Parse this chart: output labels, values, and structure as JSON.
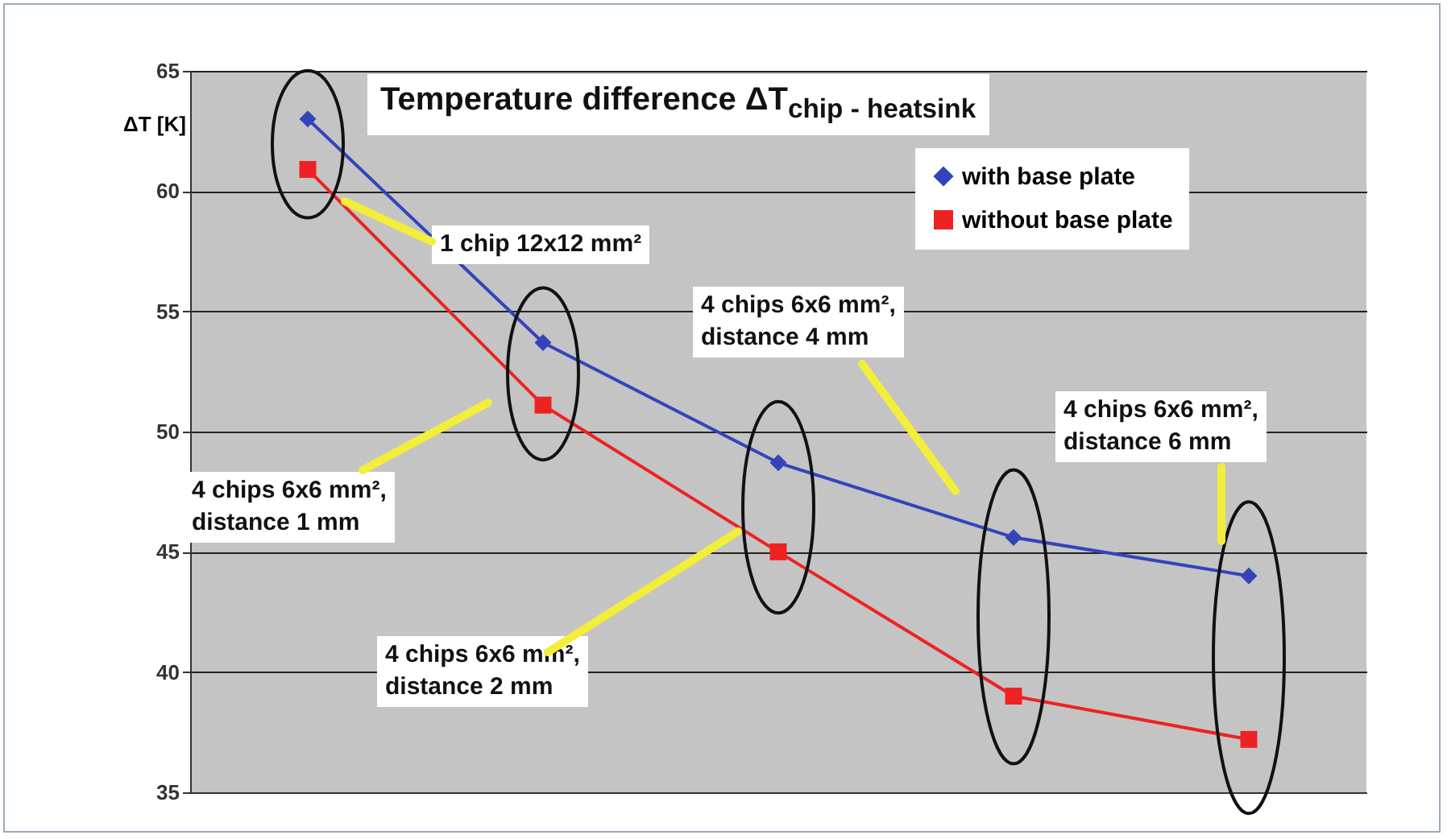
{
  "chart_data": {
    "type": "line",
    "title": "Temperature difference ΔT$_{chip - heatsink}$",
    "ylabel": "ΔT [K]",
    "categories": [
      null,
      null,
      null,
      null,
      null
    ],
    "series": [
      {
        "name": "with base plate",
        "color": "#3344bb",
        "marker": "diamond",
        "values": [
          63,
          53.7,
          48.7,
          45.6,
          44
        ]
      },
      {
        "name": "without base plate",
        "color": "#ee2222",
        "marker": "square",
        "values": [
          60.9,
          51.1,
          45,
          39,
          37.2
        ]
      }
    ],
    "ylim": [
      35,
      65
    ],
    "yticks": [
      35,
      40,
      45,
      50,
      55,
      60,
      65
    ],
    "grid": "y",
    "legend": "top right",
    "annotations": [
      "1 chip 12x12 mm²",
      "4 chips 6x6 mm², distance 1 mm",
      "4 chips 6x6 mm², distance 2 mm",
      "4 chips 6x6 mm², distance 4 mm",
      "4 chips 6x6 mm², distance 6 mm"
    ]
  }
}
